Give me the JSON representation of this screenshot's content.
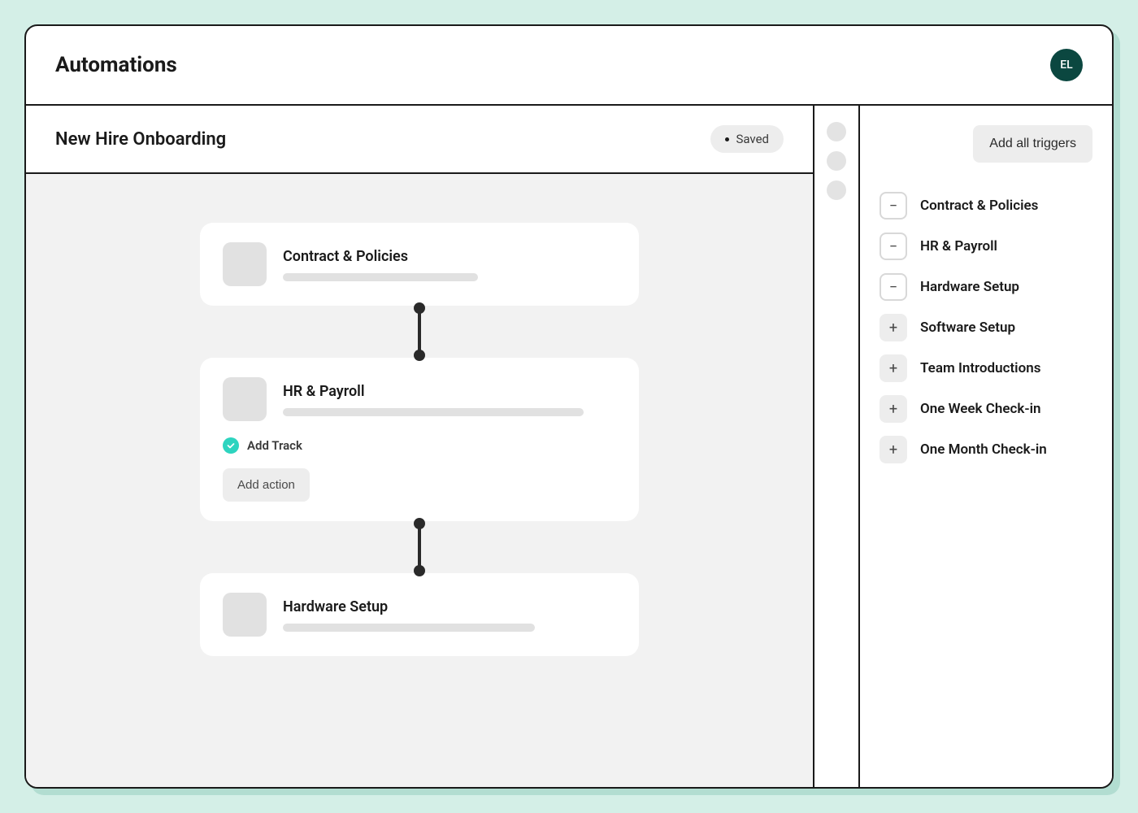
{
  "colors": {
    "page_bg": "#d4efe7",
    "panel_bg": "#ffffff",
    "canvas_bg": "#f2f2f2",
    "border": "#1a1a1a",
    "text_primary": "#1a1a1a",
    "text_secondary": "#4a4a4a",
    "placeholder": "#e1e1e1",
    "btn_gray": "#ededed",
    "avatar_bg": "#0b4740",
    "avatar_fg": "#ffffff",
    "accent_teal": "#2dd4bf",
    "connector": "#2a2a2a",
    "aux_dot": "#e3e3e3"
  },
  "header": {
    "title": "Automations",
    "avatar_initials": "EL"
  },
  "subheader": {
    "title": "New Hire Onboarding",
    "status_label": "Saved"
  },
  "flow": {
    "steps": [
      {
        "title": "Contract & Policies",
        "placeholder_width": 240,
        "has_track": false,
        "has_add_action": false
      },
      {
        "title": "HR & Payroll",
        "placeholder_width": 370,
        "has_track": true,
        "track_label": "Add Track",
        "has_add_action": true,
        "add_action_label": "Add action"
      },
      {
        "title": "Hardware Setup",
        "placeholder_width": 310,
        "has_track": false,
        "has_add_action": false
      }
    ],
    "connector_count": 2
  },
  "aux_dots": 3,
  "side_panel": {
    "add_all_label": "Add all triggers",
    "triggers": [
      {
        "label": "Contract & Policies",
        "state": "added"
      },
      {
        "label": "HR & Payroll",
        "state": "added"
      },
      {
        "label": "Hardware Setup",
        "state": "added"
      },
      {
        "label": "Software Setup",
        "state": "available"
      },
      {
        "label": "Team Introductions",
        "state": "available"
      },
      {
        "label": "One Week Check-in",
        "state": "available"
      },
      {
        "label": "One Month Check-in",
        "state": "available"
      }
    ]
  }
}
